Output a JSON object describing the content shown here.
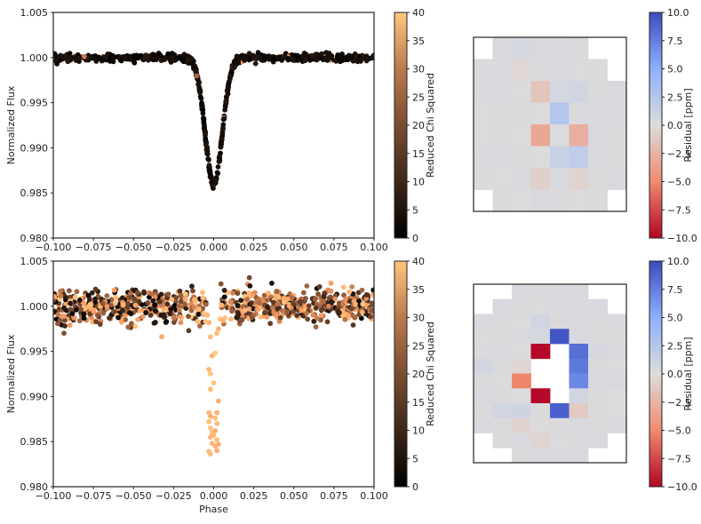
{
  "chart_data": [
    {
      "type": "scatter",
      "panel": "top-left",
      "xlabel": "",
      "ylabel": "Normalized Flux",
      "xlim": [
        -0.1,
        0.1
      ],
      "ylim": [
        0.98,
        1.005
      ],
      "xticks": [
        -0.1,
        -0.075,
        -0.05,
        -0.025,
        0.0,
        0.025,
        0.05,
        0.075,
        0.1
      ],
      "xtick_labels": [
        "−0.100",
        "−0.075",
        "−0.050",
        "−0.025",
        "0.000",
        "0.025",
        "0.050",
        "0.075",
        "0.100"
      ],
      "yticks": [
        0.98,
        0.985,
        0.99,
        0.995,
        1.0,
        1.005
      ],
      "ytick_labels": [
        "0.980",
        "0.985",
        "0.990",
        "0.995",
        "1.000",
        "1.005"
      ],
      "transit": {
        "depth": 0.014,
        "width": 0.0075
      },
      "noise": 0.0002,
      "n_points": 700,
      "chi2_mode": "low",
      "colorbar": {
        "label": "Reduced Chi Squared",
        "ticks": [
          "0",
          "5",
          "10",
          "15",
          "20",
          "25",
          "30",
          "35",
          "40"
        ],
        "range": [
          0,
          40
        ]
      }
    },
    {
      "type": "heatmap",
      "panel": "top-right",
      "ylabel": "Residual [ppm]",
      "grid": [
        [
          null,
          0.3,
          0.5,
          0.3,
          0.3,
          0.2,
          null,
          null
        ],
        [
          0.2,
          0.3,
          -0.3,
          0.2,
          0.3,
          0.1,
          0.2,
          null
        ],
        [
          0.2,
          0.3,
          0.1,
          -1.5,
          0.6,
          0.8,
          0.2,
          0.3
        ],
        [
          0.1,
          0.2,
          0.2,
          0.1,
          2.5,
          0.2,
          0.3,
          0.3
        ],
        [
          0.1,
          0.2,
          0.1,
          -3.2,
          0.1,
          -2.8,
          0.3,
          0.2
        ],
        [
          0.2,
          0.3,
          0.2,
          0.1,
          1.3,
          1.8,
          0.3,
          0.2
        ],
        [
          0.2,
          0.1,
          0.3,
          -0.8,
          0.3,
          -0.6,
          0.2,
          0.3
        ],
        [
          null,
          0.2,
          0.1,
          0.3,
          0.2,
          0.1,
          0.2,
          null
        ]
      ],
      "colorbar": {
        "label": "Residual [ppm]",
        "ticks": [
          "10.0",
          "7.5",
          "5.0",
          "2.5",
          "0.0",
          "−2.5",
          "−5.0",
          "−7.5",
          "−10.0"
        ],
        "range": [
          -10,
          10
        ]
      }
    },
    {
      "type": "scatter",
      "panel": "bottom-left",
      "xlabel": "Phase",
      "ylabel": "Normalized Flux",
      "xlim": [
        -0.1,
        0.1
      ],
      "ylim": [
        0.98,
        1.005
      ],
      "xticks": [
        -0.1,
        -0.075,
        -0.05,
        -0.025,
        0.0,
        0.025,
        0.05,
        0.075,
        0.1
      ],
      "xtick_labels": [
        "−0.100",
        "−0.075",
        "−0.050",
        "−0.025",
        "0.000",
        "0.025",
        "0.050",
        "0.075",
        "0.100"
      ],
      "yticks": [
        0.98,
        0.985,
        0.99,
        0.995,
        1.0,
        1.005
      ],
      "ytick_labels": [
        "0.980",
        "0.985",
        "0.990",
        "0.995",
        "1.000",
        "1.005"
      ],
      "noise": 0.0009,
      "n_points": 900,
      "chi2_mode": "mixed",
      "transit_points": [
        [
          -0.003,
          0.993
        ],
        [
          -0.002,
          0.9925
        ],
        [
          -0.002,
          0.9908
        ],
        [
          -0.003,
          0.9882
        ],
        [
          -0.002,
          0.9878
        ],
        [
          -0.003,
          0.9872
        ],
        [
          -0.002,
          0.9865
        ],
        [
          -0.001,
          0.986
        ],
        [
          -0.002,
          0.9855
        ],
        [
          0.0,
          0.9857
        ],
        [
          0.001,
          0.9862
        ],
        [
          0.002,
          0.987
        ],
        [
          0.001,
          0.9876
        ],
        [
          0.002,
          0.9882
        ],
        [
          0.003,
          0.9895
        ],
        [
          -0.001,
          0.9848
        ],
        [
          0.002,
          0.9852
        ],
        [
          0.001,
          0.9845
        ],
        [
          -0.003,
          0.9839
        ],
        [
          0.003,
          0.9847
        ],
        [
          -0.002,
          0.9836
        ],
        [
          0.002,
          0.984
        ],
        [
          -0.004,
          0.999
        ],
        [
          -0.003,
          0.9982
        ],
        [
          0.004,
          0.9986
        ],
        [
          0.006,
          0.9984
        ],
        [
          -0.006,
          0.9992
        ],
        [
          0.007,
          0.9987
        ],
        [
          0.003,
          0.9975
        ],
        [
          -0.005,
          0.9983
        ],
        [
          -0.002,
          0.9966
        ],
        [
          0.002,
          0.997
        ],
        [
          -0.001,
          0.9945
        ],
        [
          0.001,
          0.9948
        ],
        [
          0.0,
          0.9915
        ]
      ],
      "colorbar": {
        "label": "Reduced Chi Squared",
        "ticks": [
          "0",
          "5",
          "10",
          "15",
          "20",
          "25",
          "30",
          "35",
          "40"
        ],
        "range": [
          0,
          40
        ]
      }
    },
    {
      "type": "heatmap",
      "panel": "bottom-right",
      "ylabel": "Residual [ppm]",
      "grid": [
        [
          null,
          null,
          0.3,
          0.2,
          0.3,
          0.3,
          null,
          null
        ],
        [
          null,
          0.3,
          0.2,
          0.1,
          0.3,
          0.2,
          0.3,
          null
        ],
        [
          0.3,
          0.2,
          0.1,
          0.8,
          0.2,
          0.3,
          0.2,
          0.3
        ],
        [
          0.1,
          0.2,
          0.3,
          0.5,
          9.5,
          0.3,
          0.2,
          0.2
        ],
        [
          0.2,
          0.3,
          0.1,
          -9.8,
          null,
          8.3,
          0.4,
          0.3
        ],
        [
          0.8,
          0.2,
          -0.4,
          null,
          null,
          7.8,
          0.2,
          0.1
        ],
        [
          0.2,
          0.1,
          -5.2,
          null,
          null,
          7.0,
          0.3,
          0.3
        ],
        [
          0.3,
          0.2,
          0.1,
          -9.9,
          null,
          0.8,
          0.2,
          0.1
        ],
        [
          0.2,
          0.8,
          0.9,
          0.2,
          9.0,
          -1.2,
          0.2,
          0.1
        ],
        [
          0.3,
          0.2,
          -0.6,
          0.1,
          0.2,
          0.3,
          0.2,
          0.3
        ],
        [
          null,
          0.2,
          0.3,
          -0.5,
          0.1,
          0.2,
          0.3,
          null
        ],
        [
          null,
          null,
          0.2,
          0.3,
          0.2,
          0.3,
          null,
          null
        ]
      ],
      "colorbar": {
        "label": "Residual [ppm]",
        "ticks": [
          "10.0",
          "7.5",
          "5.0",
          "2.5",
          "0.0",
          "−2.5",
          "−5.0",
          "−7.5",
          "−10.0"
        ],
        "range": [
          -10,
          10
        ]
      }
    }
  ]
}
